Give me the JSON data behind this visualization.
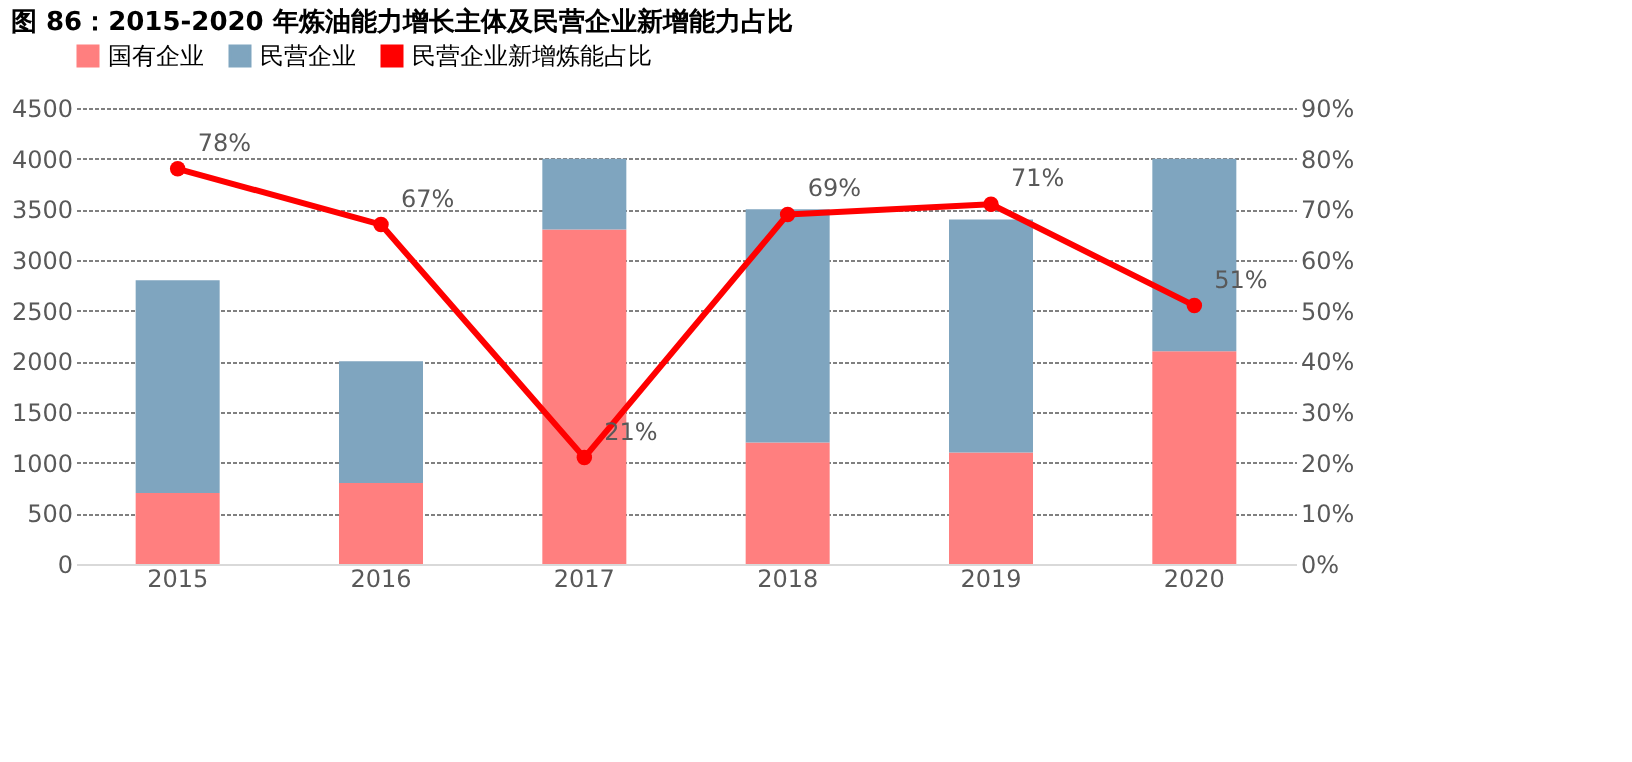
{
  "chart_data": {
    "type": "bar",
    "title": "图 86：2015-2020 年炼油能力增长主体及民营企业新增能力占比",
    "categories": [
      "2015",
      "2016",
      "2017",
      "2018",
      "2019",
      "2020"
    ],
    "stacked": true,
    "series": [
      {
        "name": "国有企业",
        "color": "#ff7f7f",
        "values": [
          700,
          800,
          3300,
          1200,
          1100,
          2100
        ]
      },
      {
        "name": "民营企业",
        "color": "#7fa5bf",
        "values": [
          2100,
          1200,
          700,
          2300,
          2300,
          1900
        ]
      },
      {
        "name": "民营企业新增炼能占比",
        "type": "line",
        "axis": "y2",
        "color": "#ff0000",
        "marker": "circle",
        "values": [
          78,
          67,
          21,
          69,
          71,
          51
        ],
        "value_labels": [
          "78%",
          "67%",
          "21%",
          "69%",
          "71%",
          "51%"
        ]
      }
    ],
    "ylim": [
      0,
      4500
    ],
    "yticks": [
      0,
      500,
      1000,
      1500,
      2000,
      2500,
      3000,
      3500,
      4000,
      4500
    ],
    "y2lim": [
      0,
      90
    ],
    "y2ticks": [
      {
        "value": 0,
        "label": "0%"
      },
      {
        "value": 10,
        "label": "10%"
      },
      {
        "value": 20,
        "label": "20%"
      },
      {
        "value": 30,
        "label": "30%"
      },
      {
        "value": 40,
        "label": "40%"
      },
      {
        "value": 50,
        "label": "50%"
      },
      {
        "value": 60,
        "label": "60%"
      },
      {
        "value": 70,
        "label": "70%"
      },
      {
        "value": 80,
        "label": "80%"
      },
      {
        "value": 90,
        "label": "90%"
      }
    ],
    "grid": "y",
    "legend": "top"
  }
}
